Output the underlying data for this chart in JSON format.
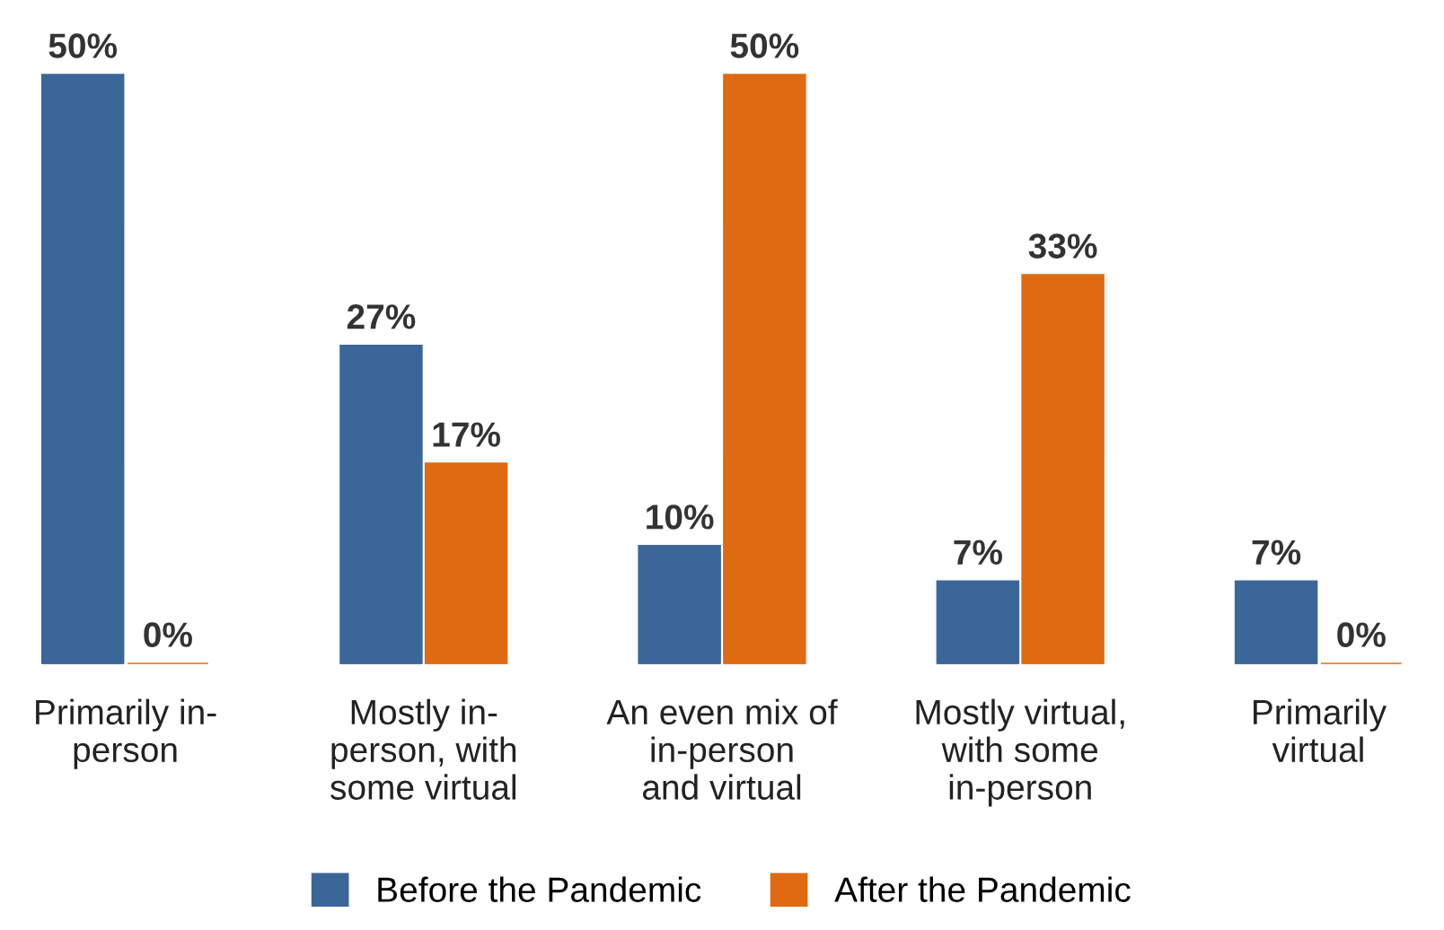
{
  "chart_data": {
    "type": "bar",
    "categories": [
      "Primarily in-\nperson",
      "Mostly in-\nperson, with\nsome virtual",
      "An even mix of\nin-person\nand virtual",
      "Mostly virtual,\nwith some\nin-person",
      "Primarily\nvirtual"
    ],
    "series": [
      {
        "name": "Before the Pandemic",
        "color": "#3b6699",
        "values": [
          50,
          27,
          10,
          7,
          7
        ],
        "value_labels": [
          "50%",
          "27%",
          "10%",
          "7%",
          "7%"
        ]
      },
      {
        "name": "After the Pandemic",
        "color": "#e06a12",
        "values": [
          0,
          17,
          50,
          33,
          0
        ],
        "value_labels": [
          "0%",
          "17%",
          "50%",
          "33%",
          "0%"
        ]
      }
    ],
    "legend": "bottom"
  }
}
